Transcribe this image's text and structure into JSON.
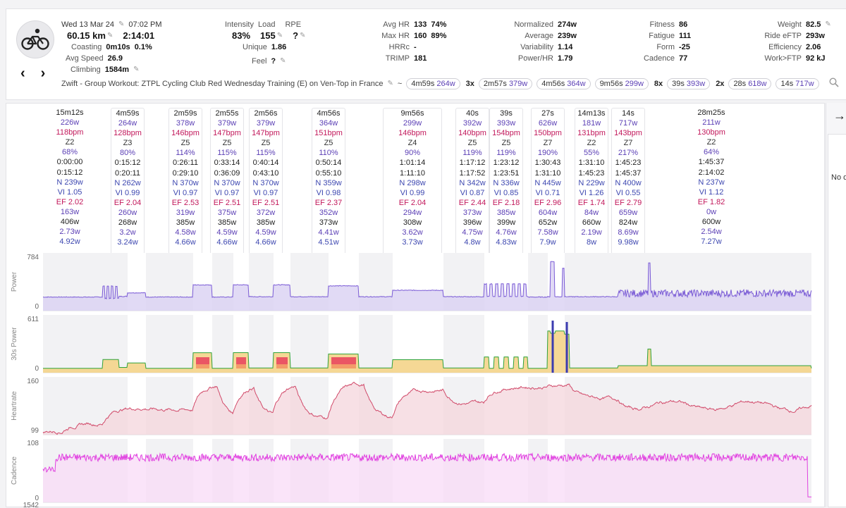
{
  "header": {
    "date": "Wed 13 Mar 24",
    "time": "07:02 PM",
    "distance": "60.15 km",
    "duration": "2:14:01",
    "coasting_label": "Coasting",
    "coasting_value": "0m10s",
    "coasting_pct": "0.1%",
    "avg_speed_label": "Avg Speed",
    "avg_speed_value": "26.9",
    "climbing_label": "Climbing",
    "climbing_value": "1584m",
    "intensity_label": "Intensity",
    "intensity_value": "83%",
    "load_label": "Load",
    "load_value": "155",
    "rpe_label": "RPE",
    "rpe_value": "?",
    "unique_label": "Unique",
    "unique_value": "1.86",
    "feel_label": "Feel",
    "feel_value": "?",
    "avg_hr_label": "Avg HR",
    "avg_hr_value": "133",
    "avg_hr_pct": "74%",
    "max_hr_label": "Max HR",
    "max_hr_value": "160",
    "max_hr_pct": "89%",
    "hrrc_label": "HRRc",
    "hrrc_value": "-",
    "trimp_label": "TRIMP",
    "trimp_value": "181",
    "normalized_label": "Normalized",
    "normalized_value": "274w",
    "average_label": "Average",
    "average_value": "239w",
    "variability_label": "Variability",
    "variability_value": "1.14",
    "powerhr_label": "Power/HR",
    "powerhr_value": "1.79",
    "fitness_label": "Fitness",
    "fitness_value": "86",
    "fatigue_label": "Fatigue",
    "fatigue_value": "111",
    "form_label": "Form",
    "form_value": "-25",
    "cadence_label": "Cadence",
    "cadence_value": "77",
    "weight_label": "Weight",
    "weight_value": "82.5",
    "ride_eftp_label": "Ride eFTP",
    "ride_eftp_value": "293w",
    "efficiency_label": "Efficiency",
    "efficiency_value": "2.06",
    "workftp_label": "Work>FTP",
    "workftp_value": "92 kJ",
    "activity_name": "Zwift - Group Workout: ZTPL Cycling Club Red Wednesday Training (E) on Ven-Top in France",
    "tilde": "~",
    "chips": [
      {
        "mult": "",
        "dur": "4m59s",
        "w": "264w"
      },
      {
        "mult": "3x",
        "dur": "2m57s",
        "w": "379w"
      },
      {
        "mult": "",
        "dur": "4m56s",
        "w": "364w"
      },
      {
        "mult": "",
        "dur": "9m56s",
        "w": "299w"
      },
      {
        "mult": "8x",
        "dur": "39s",
        "w": "393w"
      },
      {
        "mult": "2x",
        "dur": "28s",
        "w": "618w"
      },
      {
        "mult": "",
        "dur": "14s",
        "w": "717w"
      }
    ]
  },
  "intervals": [
    {
      "dur": "15m12s",
      "w": "226w",
      "hr": "118bpm",
      "zone": "Z2",
      "pct": "68%",
      "start": "0:00:00",
      "end": "0:15:12",
      "np": "N 239w",
      "vi": "VI 1.05",
      "ef": "EF 2.02",
      "a": "163w",
      "b": "406w",
      "c": "2.73w",
      "d": "4.92w"
    },
    {
      "dur": "4m59s",
      "w": "264w",
      "hr": "128bpm",
      "zone": "Z3",
      "pct": "80%",
      "start": "0:15:12",
      "end": "0:20:11",
      "np": "N 262w",
      "vi": "VI 0.99",
      "ef": "EF 2.04",
      "a": "260w",
      "b": "268w",
      "c": "3.2w",
      "d": "3.24w"
    },
    {
      "dur": "2m59s",
      "w": "378w",
      "hr": "146bpm",
      "zone": "Z5",
      "pct": "114%",
      "start": "0:26:11",
      "end": "0:29:10",
      "np": "N 370w",
      "vi": "VI 0.97",
      "ef": "EF 2.53",
      "a": "319w",
      "b": "385w",
      "c": "4.58w",
      "d": "4.66w"
    },
    {
      "dur": "2m55s",
      "w": "379w",
      "hr": "147bpm",
      "zone": "Z5",
      "pct": "115%",
      "start": "0:33:14",
      "end": "0:36:09",
      "np": "N 370w",
      "vi": "VI 0.97",
      "ef": "EF 2.51",
      "a": "375w",
      "b": "385w",
      "c": "4.59w",
      "d": "4.66w"
    },
    {
      "dur": "2m56s",
      "w": "379w",
      "hr": "147bpm",
      "zone": "Z5",
      "pct": "115%",
      "start": "0:40:14",
      "end": "0:43:10",
      "np": "N 370w",
      "vi": "VI 0.97",
      "ef": "EF 2.51",
      "a": "372w",
      "b": "385w",
      "c": "4.59w",
      "d": "4.66w"
    },
    {
      "dur": "4m56s",
      "w": "364w",
      "hr": "151bpm",
      "zone": "Z5",
      "pct": "110%",
      "start": "0:50:14",
      "end": "0:55:10",
      "np": "N 359w",
      "vi": "VI 0.98",
      "ef": "EF 2.37",
      "a": "352w",
      "b": "373w",
      "c": "4.41w",
      "d": "4.51w"
    },
    {
      "dur": "9m56s",
      "w": "299w",
      "hr": "146bpm",
      "zone": "Z4",
      "pct": "90%",
      "start": "1:01:14",
      "end": "1:11:10",
      "np": "N 298w",
      "vi": "VI 0.99",
      "ef": "EF 2.04",
      "a": "294w",
      "b": "308w",
      "c": "3.62w",
      "d": "3.73w"
    },
    {
      "dur": "40s",
      "w": "392w",
      "hr": "140bpm",
      "zone": "Z5",
      "pct": "119%",
      "start": "1:17:12",
      "end": "1:17:52",
      "np": "N 342w",
      "vi": "VI 0.87",
      "ef": "EF 2.44",
      "a": "373w",
      "b": "396w",
      "c": "4.75w",
      "d": "4.8w"
    },
    {
      "dur": "39s",
      "w": "393w",
      "hr": "154bpm",
      "zone": "Z5",
      "pct": "119%",
      "start": "1:23:12",
      "end": "1:23:51",
      "np": "N 336w",
      "vi": "VI 0.85",
      "ef": "EF 2.18",
      "a": "385w",
      "b": "399w",
      "c": "4.76w",
      "d": "4.83w"
    },
    {
      "dur": "27s",
      "w": "626w",
      "hr": "150bpm",
      "zone": "Z7",
      "pct": "190%",
      "start": "1:30:43",
      "end": "1:31:10",
      "np": "N 445w",
      "vi": "VI 0.71",
      "ef": "EF 2.96",
      "a": "604w",
      "b": "652w",
      "c": "7.58w",
      "d": "7.9w"
    },
    {
      "dur": "14m13s",
      "w": "181w",
      "hr": "131bpm",
      "zone": "Z2",
      "pct": "55%",
      "start": "1:31:10",
      "end": "1:45:23",
      "np": "N 229w",
      "vi": "VI 1.26",
      "ef": "EF 1.74",
      "a": "84w",
      "b": "660w",
      "c": "2.19w",
      "d": "8w"
    },
    {
      "dur": "14s",
      "w": "717w",
      "hr": "143bpm",
      "zone": "Z7",
      "pct": "217%",
      "start": "1:45:23",
      "end": "1:45:37",
      "np": "N 400w",
      "vi": "VI 0.55",
      "ef": "EF 2.79",
      "a": "659w",
      "b": "824w",
      "c": "8.69w",
      "d": "9.98w"
    },
    {
      "dur": "28m25s",
      "w": "211w",
      "hr": "130bpm",
      "zone": "Z2",
      "pct": "64%",
      "start": "1:45:37",
      "end": "2:14:02",
      "np": "N 237w",
      "vi": "VI 1.12",
      "ef": "EF 1.82",
      "a": "0w",
      "b": "600w",
      "c": "2.54w",
      "d": "7.27w"
    }
  ],
  "charts": {
    "power": {
      "name": "Power",
      "ymax": "784",
      "ymin": "0",
      "color": "#7b5cd6"
    },
    "power30": {
      "name": "30s Power",
      "ymax": "611",
      "ymin": "0"
    },
    "heartrate": {
      "name": "Heartrate",
      "ymax": "160",
      "ymin": "99",
      "color": "#d14a6a"
    },
    "cadence": {
      "name": "Cadence",
      "ymax": "108",
      "ymin": "0",
      "color": "#e040e0"
    },
    "next_axis_label": "1542"
  },
  "side": {
    "no_data_text": "No d",
    "arrow": "→"
  }
}
